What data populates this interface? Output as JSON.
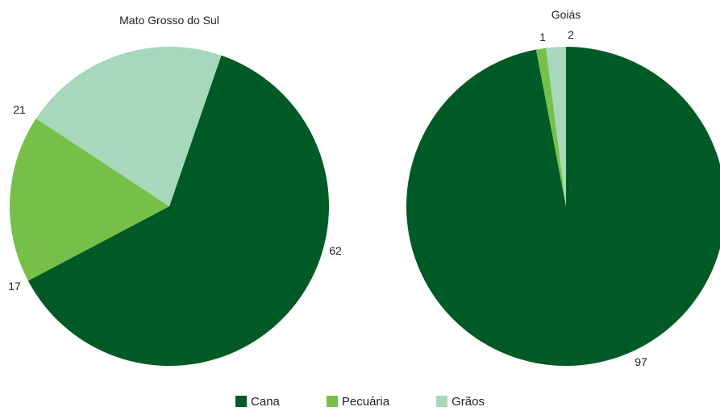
{
  "chart_data": [
    {
      "type": "pie",
      "title": "Mato Grosso do Sul",
      "slices": [
        {
          "category": "Cana",
          "value": 62,
          "label": "62",
          "color": "#005a25"
        },
        {
          "category": "Pecuária",
          "value": 17,
          "label": "17",
          "color": "#76c04a"
        },
        {
          "category": "Grãos",
          "value": 21,
          "label": "21",
          "color": "#a8d8bc"
        }
      ]
    },
    {
      "type": "pie",
      "title": "Goiás",
      "slices": [
        {
          "category": "Cana",
          "value": 97,
          "label": "97",
          "color": "#005a25"
        },
        {
          "category": "Pecuária",
          "value": 1,
          "label": "1",
          "color": "#76c04a"
        },
        {
          "category": "Grãos",
          "value": 2,
          "label": "2",
          "color": "#a8d8bc"
        }
      ]
    }
  ],
  "legend": {
    "placement": "bottom-center",
    "items": [
      {
        "label": "Cana",
        "color": "#005a25"
      },
      {
        "label": "Pecuária",
        "color": "#76c04a"
      },
      {
        "label": "Grãos",
        "color": "#a8d8bc"
      }
    ]
  }
}
